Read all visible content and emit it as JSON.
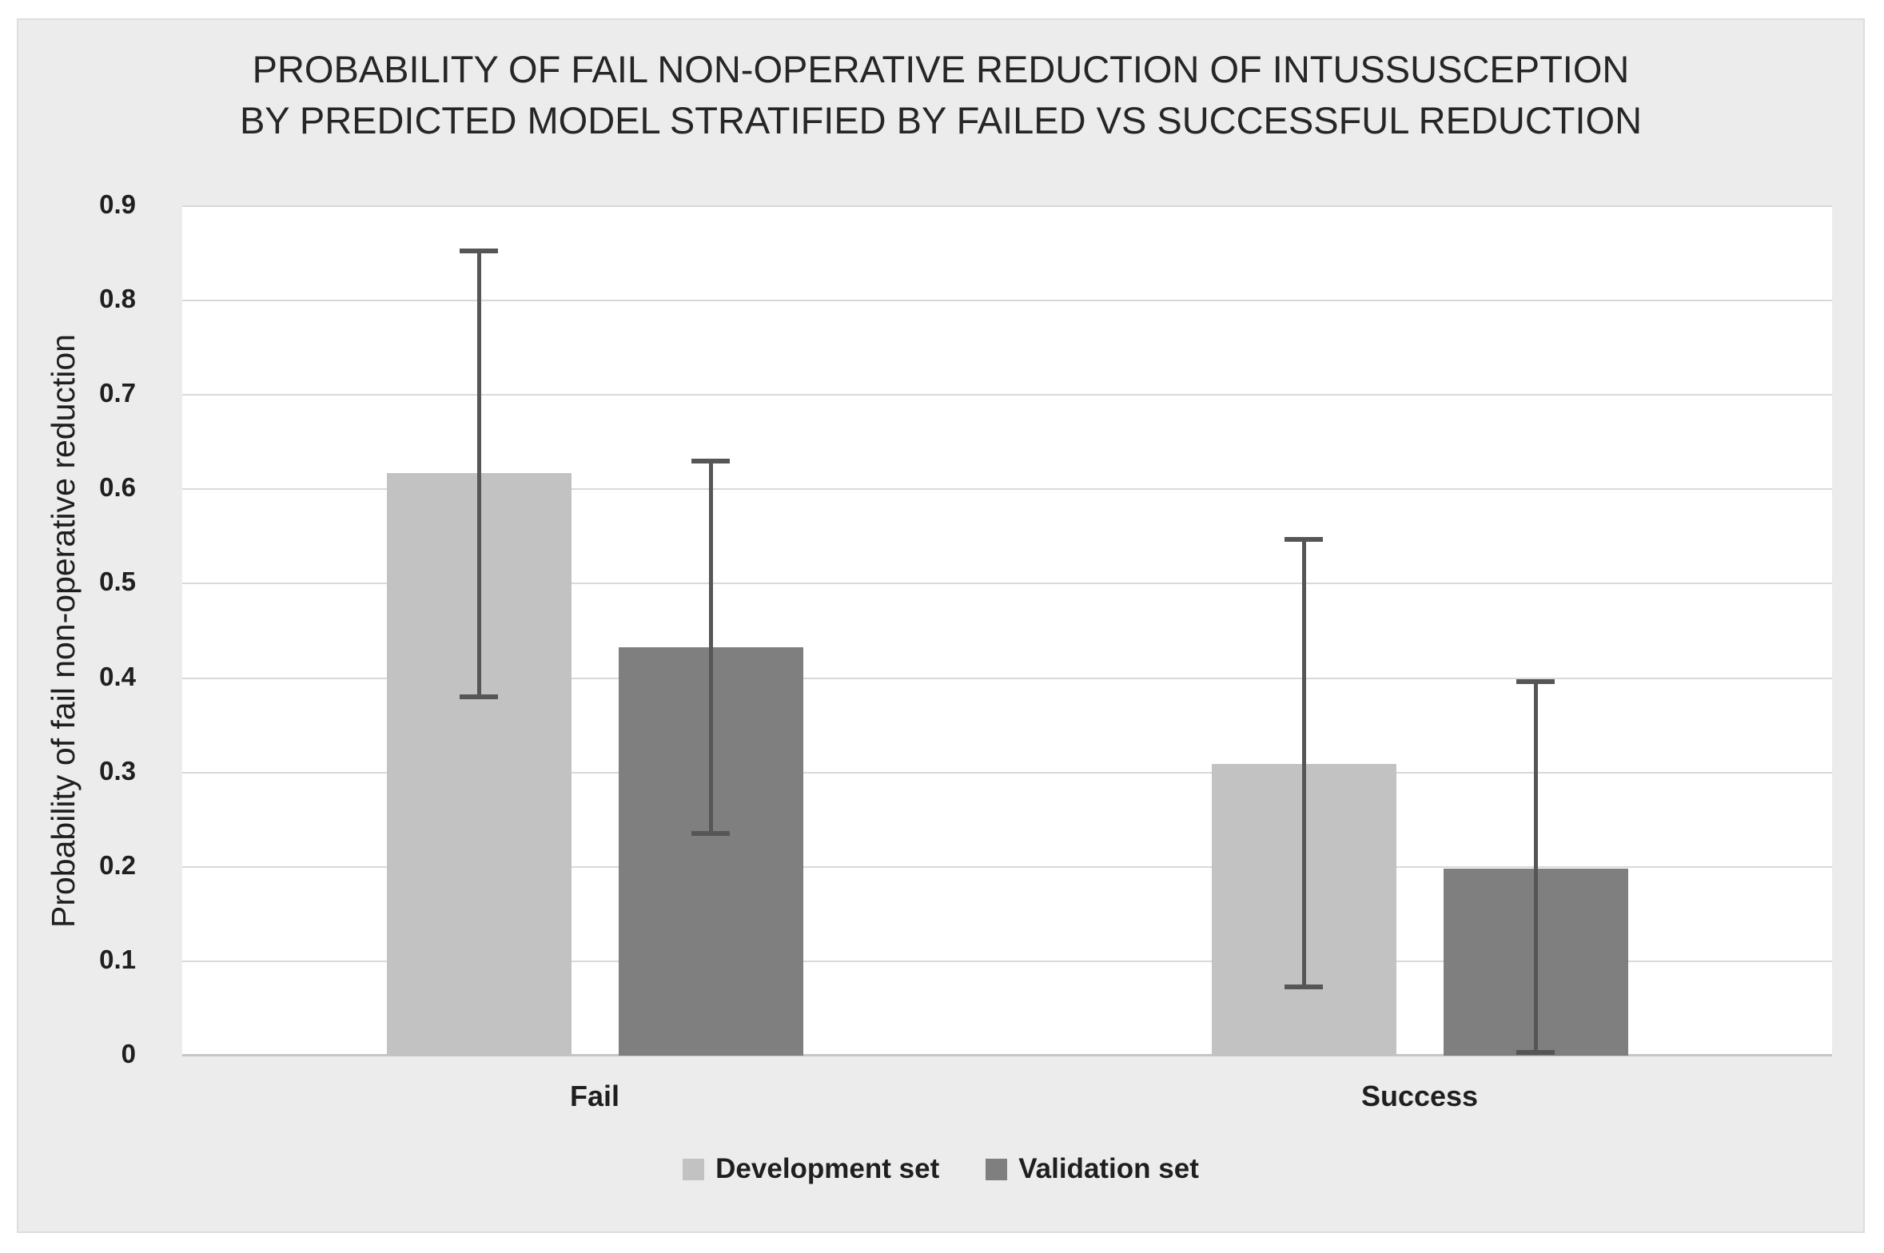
{
  "chart_data": {
    "type": "bar",
    "title": "PROBABILITY OF FAIL NON-OPERATIVE REDUCTION OF INTUSSUSCEPTION BY PREDICTED MODEL STRATIFIED BY FAILED VS SUCCESSFUL REDUCTION",
    "title_lines": [
      "PROBABILITY OF FAIL NON-OPERATIVE REDUCTION OF INTUSSUSCEPTION",
      "BY PREDICTED MODEL STRATIFIED BY FAILED VS SUCCESSFUL REDUCTION"
    ],
    "categories": [
      "Fail",
      "Success"
    ],
    "series": [
      {
        "name": "Development set",
        "color": "#C2C2C2",
        "values": [
          0.617,
          0.309
        ],
        "ci_low": [
          0.38,
          0.073
        ],
        "ci_high": [
          0.853,
          0.547
        ]
      },
      {
        "name": "Validation set",
        "color": "#7F7F7F",
        "values": [
          0.433,
          0.198
        ],
        "ci_low": [
          0.235,
          0.003
        ],
        "ci_high": [
          0.63,
          0.396
        ]
      }
    ],
    "xlabel": "",
    "ylabel": "Probability of fail non-operative reduction",
    "ylim": [
      0,
      0.9
    ],
    "ytick_step": 0.1,
    "yticks": [
      "0",
      "0.1",
      "0.2",
      "0.3",
      "0.4",
      "0.5",
      "0.6",
      "0.7",
      "0.8",
      "0.9"
    ],
    "grid": true,
    "legend_position": "bottom",
    "error_bars": true,
    "colors": {
      "panel_background": "#ECECEC",
      "plot_background": "#FFFFFF",
      "gridline": "#D9D9D9",
      "axis_line": "#C6C6C6",
      "error_bar": "#565656",
      "text": "#1F1F1F"
    }
  }
}
